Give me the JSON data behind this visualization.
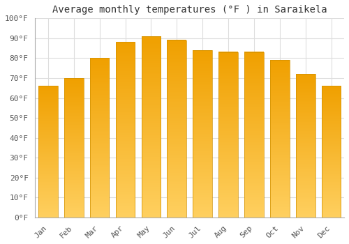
{
  "title": "Average monthly temperatures (°F ) in Saraikela",
  "months": [
    "Jan",
    "Feb",
    "Mar",
    "Apr",
    "May",
    "Jun",
    "Jul",
    "Aug",
    "Sep",
    "Oct",
    "Nov",
    "Dec"
  ],
  "values": [
    66,
    70,
    80,
    88,
    91,
    89,
    84,
    83,
    83,
    79,
    72,
    66
  ],
  "bar_color_top": "#F0A000",
  "bar_color_bottom": "#FFD060",
  "ylim": [
    0,
    100
  ],
  "yticks": [
    0,
    10,
    20,
    30,
    40,
    50,
    60,
    70,
    80,
    90,
    100
  ],
  "ytick_labels": [
    "0°F",
    "10°F",
    "20°F",
    "30°F",
    "40°F",
    "50°F",
    "60°F",
    "70°F",
    "80°F",
    "90°F",
    "100°F"
  ],
  "background_color": "#ffffff",
  "grid_color": "#dddddd",
  "title_fontsize": 10,
  "tick_fontsize": 8,
  "bar_width": 0.75
}
